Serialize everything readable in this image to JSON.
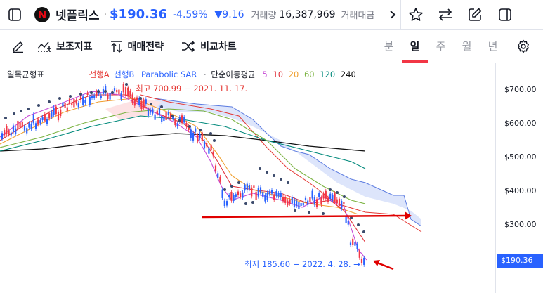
{
  "header": {
    "logo_letter": "N",
    "stock_name": "넷플릭스",
    "separator": "·",
    "price": "$190.36",
    "change_pct": "-4.59%",
    "change_value": "▼9.16",
    "volume_label": "거래량",
    "volume_value": "16,387,969",
    "amount_label": "거래대금"
  },
  "toolbar": {
    "indicators_label": "보조지표",
    "strategy_label": "매매전략",
    "compare_label": "비교차트",
    "periods": [
      "분",
      "일",
      "주",
      "월",
      "년"
    ],
    "active_period": "일"
  },
  "legend": {
    "ichimoku": "일목균형표",
    "senkou_a": "선행A",
    "senkou_b": "선행B",
    "sar": "Parabolic SAR",
    "sma": "단순이동평균",
    "ma5": "5",
    "ma10": "10",
    "ma20": "20",
    "ma60": "60",
    "ma120": "120",
    "ma240": "240"
  },
  "annotations": {
    "high": "최고 700.99 − 2021. 11. 17.",
    "low": "최저 185.60 − 2022. 4. 28."
  },
  "price_axis": {
    "ticks": [
      "$700.00",
      "$600.00",
      "$500.00",
      "$400.00",
      "$300.00"
    ],
    "current_price": "$190.36"
  },
  "colors": {
    "accent": "#2962ff",
    "down": "#2962ff",
    "up": "#f23645",
    "ma5": "#c74bd6",
    "ma10": "#e0303a",
    "ma20": "#f0a030",
    "ma60": "#7cb342",
    "ma120": "#00897b",
    "ma240": "#111111"
  }
}
